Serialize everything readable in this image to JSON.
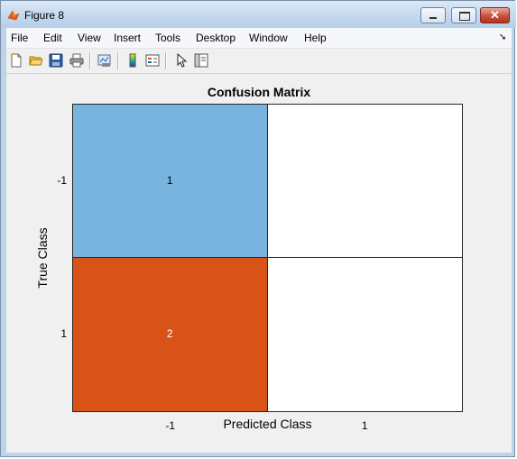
{
  "window": {
    "title": "Figure 8"
  },
  "menu": {
    "items": [
      "File",
      "Edit",
      "View",
      "Insert",
      "Tools",
      "Desktop",
      "Window",
      "Help"
    ]
  },
  "toolbar": {
    "icons": [
      "new-figure-icon",
      "open-icon",
      "save-icon",
      "print-icon",
      "link-plot-icon",
      "colorbar-icon",
      "legend-icon",
      "pointer-icon",
      "plot-tools-icon"
    ]
  },
  "chart_data": {
    "type": "heatmap",
    "title": "Confusion Matrix",
    "xlabel": "Predicted Class",
    "ylabel": "True Class",
    "x_categories": [
      "-1",
      "1"
    ],
    "y_categories": [
      "-1",
      "1"
    ],
    "values": [
      [
        1,
        null
      ],
      [
        2,
        null
      ]
    ],
    "cell_colors": [
      [
        "#79b4de",
        "#ffffff"
      ],
      [
        "#d95319",
        "#ffffff"
      ]
    ],
    "label_colors": [
      [
        "#000000",
        "#000000"
      ],
      [
        "#ffffff",
        "#000000"
      ]
    ],
    "grid": false
  }
}
